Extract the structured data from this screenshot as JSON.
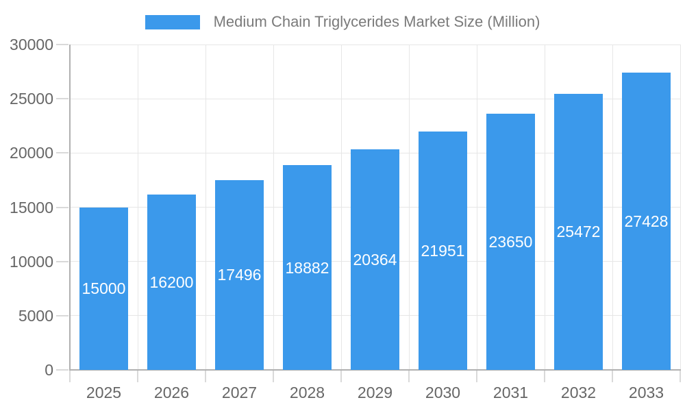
{
  "colors": {
    "bar": "#3B99EB",
    "bar_label": "#FFFFFF",
    "grid": "#E6E6E6",
    "axis_line": "#B0B0B0",
    "tick": "#D9D9D9",
    "axis_label": "#666666",
    "legend_text": "#7A7A7A",
    "background": "#FFFFFF"
  },
  "legend": {
    "label": "Medium Chain Triglycerides Market Size (Million)"
  },
  "chart_data": {
    "type": "bar",
    "title": "Medium Chain Triglycerides Market Size (Million)",
    "categories": [
      "2025",
      "2026",
      "2027",
      "2028",
      "2029",
      "2030",
      "2031",
      "2032",
      "2033"
    ],
    "series": [
      {
        "name": "Medium Chain Triglycerides Market Size (Million)",
        "values": [
          15000,
          16200,
          17496,
          18882,
          20364,
          21951,
          23650,
          25472,
          27428
        ]
      }
    ],
    "value_labels": [
      "15000",
      "16200",
      "17496",
      "18882",
      "20364",
      "21951",
      "23650",
      "25472",
      "27428"
    ],
    "xlabel": "",
    "ylabel": "",
    "ylim": [
      0,
      30000
    ],
    "ytick_step": 5000,
    "yticks": [
      0,
      5000,
      10000,
      15000,
      20000,
      25000,
      30000
    ],
    "grid": "both",
    "legend_position": "top",
    "value_label_position": "inside-center"
  }
}
